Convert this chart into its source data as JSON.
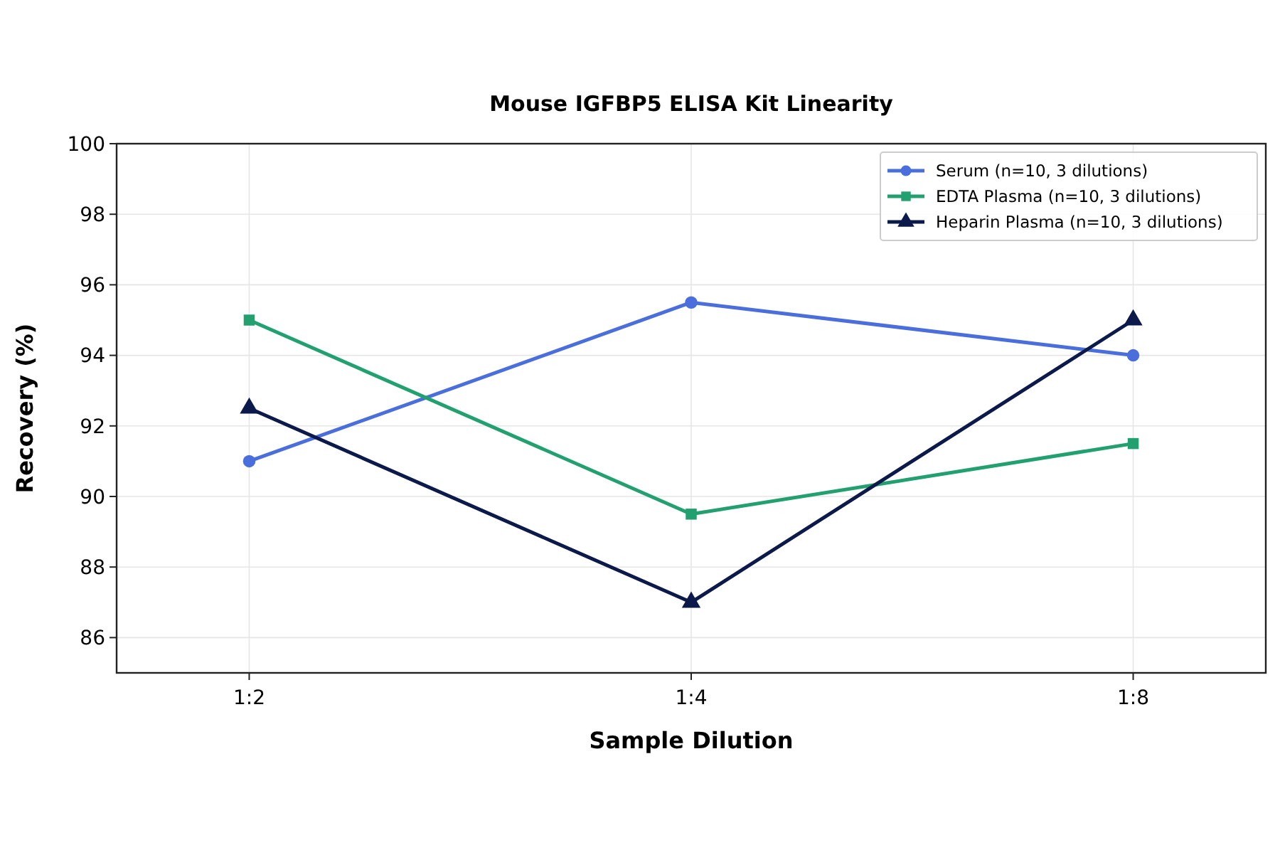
{
  "chart_data": {
    "type": "line",
    "title": "Mouse IGFBP5 ELISA Kit Linearity",
    "xlabel": "Sample Dilution",
    "ylabel": "Recovery (%)",
    "categories": [
      "1:2",
      "1:4",
      "1:8"
    ],
    "series": [
      {
        "name": "Serum (n=10, 3 dilutions)",
        "color": "#4a6fdc",
        "marker": "circle",
        "values": [
          91,
          95.5,
          94
        ]
      },
      {
        "name": "EDTA Plasma (n=10, 3 dilutions)",
        "color": "#22a070",
        "marker": "square",
        "values": [
          95,
          89.5,
          91.5
        ]
      },
      {
        "name": "Heparin Plasma (n=10, 3 dilutions)",
        "color": "#0b1a4a",
        "marker": "triangle",
        "values": [
          92.5,
          87,
          95
        ]
      }
    ],
    "ylim": [
      85,
      100
    ],
    "yticks": [
      86,
      88,
      90,
      92,
      94,
      96,
      98,
      100
    ],
    "grid": true,
    "legend": "top right",
    "line_style": "solid"
  }
}
